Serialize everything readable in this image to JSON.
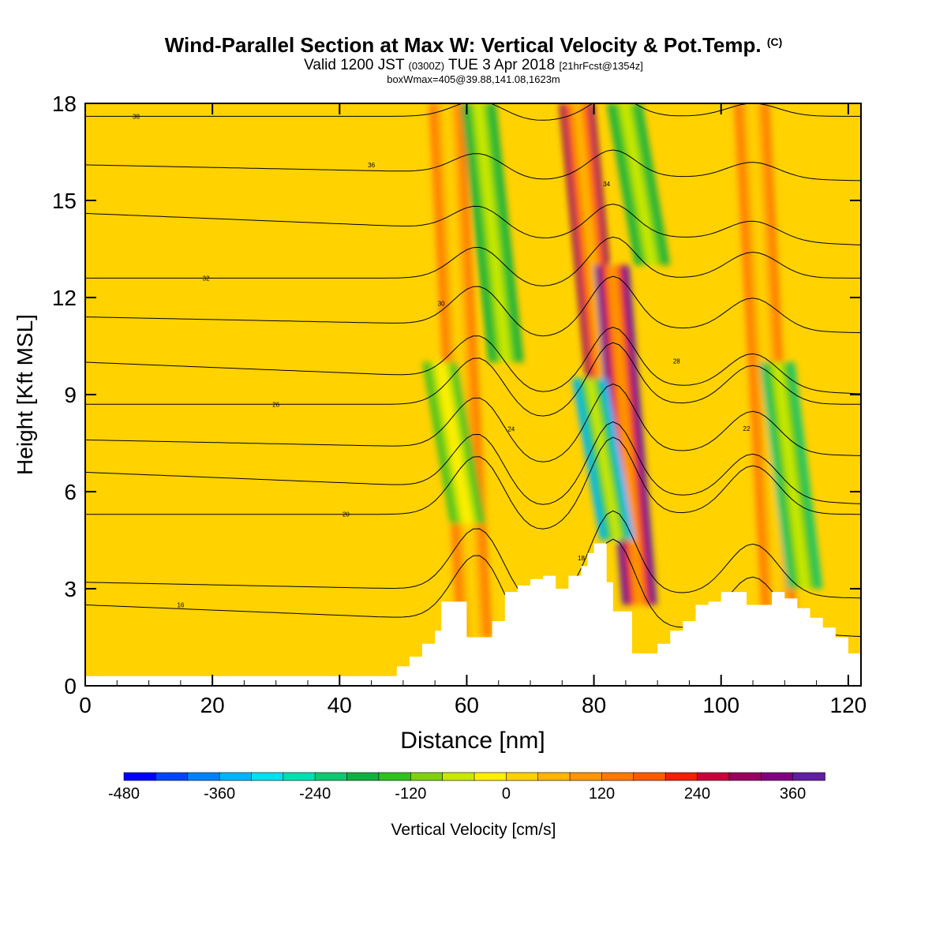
{
  "chart_data": {
    "type": "heatmap",
    "title": "Wind-Parallel Section at Max W: Vertical Velocity & Pot.Temp.",
    "title_mark": "(C)",
    "subtitle_main": "Valid 1200 JST",
    "subtitle_z": "(0300Z)",
    "subtitle_date": "TUE 3 Apr 2018",
    "subtitle_fcst": "[21hrFcst@1354z]",
    "subtitle2": "boxWmax=405@39.88,141.08,1623m",
    "xlabel": "Distance [nm]",
    "ylabel": "Height [Kft MSL]",
    "xlim": [
      0,
      122
    ],
    "ylim": [
      0,
      18
    ],
    "x_ticks": [
      "0",
      "20",
      "40",
      "60",
      "80",
      "100",
      "120"
    ],
    "y_ticks": [
      "0",
      "3",
      "6",
      "9",
      "12",
      "15",
      "18"
    ],
    "colorbar": {
      "label": "Vertical Velocity [cm/s]",
      "tick_labels": [
        "-480",
        "-360",
        "-240",
        "-120",
        "0",
        "120",
        "240",
        "360"
      ],
      "range": [
        -480,
        400
      ],
      "colors": [
        "#0000ff",
        "#0044ff",
        "#0080ff",
        "#00b4ff",
        "#00e0ee",
        "#00e0b0",
        "#10c870",
        "#10b040",
        "#30c020",
        "#80d010",
        "#c8e800",
        "#ffee00",
        "#ffd000",
        "#ffb400",
        "#ff9600",
        "#ff7800",
        "#ff5a00",
        "#f02000",
        "#c8003c",
        "#960060",
        "#800080",
        "#6020a0"
      ]
    },
    "updraft_bands": [
      {
        "x": 59,
        "y": [
          1.5,
          18
        ],
        "w_max": 150
      },
      {
        "x": 79.5,
        "y": [
          9,
          18
        ],
        "w_max": 280
      },
      {
        "x": 85,
        "y": [
          2.5,
          13
        ],
        "w_max": 380
      },
      {
        "x": 107,
        "y": [
          2,
          18
        ],
        "w_max": 130
      }
    ],
    "downdraft_bands": [
      {
        "x": 58,
        "y": [
          5,
          10
        ],
        "w_min": -150
      },
      {
        "x": 64,
        "y": [
          10,
          18
        ],
        "w_min": -200
      },
      {
        "x": 81.5,
        "y": [
          4.5,
          9.5
        ],
        "w_min": -330
      },
      {
        "x": 87,
        "y": [
          13,
          18
        ],
        "w_min": -200
      },
      {
        "x": 111,
        "y": [
          3,
          10
        ],
        "w_min": -210
      }
    ],
    "terrain": {
      "x": [
        0,
        47,
        49,
        51,
        53,
        55,
        56,
        58,
        60,
        62,
        64,
        66,
        68,
        70,
        72,
        74,
        76,
        78,
        79,
        80,
        81,
        82,
        83,
        84,
        86,
        88,
        90,
        92,
        94,
        96,
        98,
        100,
        102,
        104,
        106,
        108,
        110,
        112,
        114,
        116,
        118,
        120,
        122
      ],
      "y": [
        0.3,
        0.3,
        0.6,
        0.9,
        1.3,
        1.7,
        2.6,
        2.6,
        1.5,
        1.5,
        2.0,
        2.9,
        3.1,
        3.3,
        3.4,
        3.0,
        3.4,
        3.7,
        4.1,
        4.4,
        4.4,
        3.2,
        2.3,
        2.3,
        1.0,
        1.0,
        1.3,
        1.7,
        2.0,
        2.5,
        2.6,
        2.9,
        2.9,
        2.5,
        2.5,
        2.9,
        2.7,
        2.4,
        2.1,
        1.8,
        1.5,
        1.0,
        1.0
      ]
    },
    "theta_contours": [
      {
        "label": "38",
        "y_left": 17.6,
        "amp": 0.4
      },
      {
        "label": "36",
        "y_left": 16.1,
        "amp": 0.5
      },
      {
        "label": "34",
        "y_left": 14.6,
        "amp": 0.6
      },
      {
        "label": "32",
        "y_left": 12.6,
        "amp": 0.8
      },
      {
        "label": "30",
        "y_left": 11.4,
        "amp": 1.0
      },
      {
        "label": "28",
        "y_left": 10.0,
        "amp": 1.1
      },
      {
        "label": "26",
        "y_left": 8.7,
        "amp": 1.2
      },
      {
        "label": "24",
        "y_left": 7.6,
        "amp": 1.3
      },
      {
        "label": "22",
        "y_left": 6.6,
        "amp": 1.4
      },
      {
        "label": "20",
        "y_left": 5.3,
        "amp": 1.5
      },
      {
        "label": "18",
        "y_left": 3.2,
        "amp": 1.6
      },
      {
        "label": "16",
        "y_left": 2.5,
        "amp": 1.7
      }
    ],
    "contour_labels": [
      "38",
      "36",
      "34",
      "32",
      "30",
      "28",
      "26",
      "24",
      "22",
      "20",
      "18",
      "16"
    ]
  }
}
